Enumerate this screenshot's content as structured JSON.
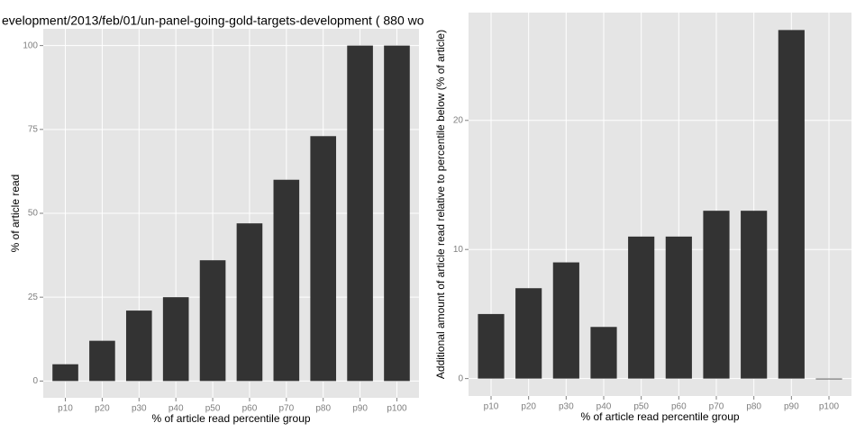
{
  "chart_data": [
    {
      "type": "bar",
      "title": "evelopment/2013/feb/01/un-panel-going-gold-targets-development ( 880 wo",
      "x_label": "% of article read percentile group",
      "y_label": "% of article read",
      "categories": [
        "p10",
        "p20",
        "p30",
        "p40",
        "p50",
        "p60",
        "p70",
        "p80",
        "p90",
        "p100"
      ],
      "values": [
        5,
        12,
        21,
        25,
        36,
        47,
        60,
        73,
        100,
        100
      ],
      "color": "#333333",
      "ylim": [
        -5,
        105
      ],
      "yticks": [
        0,
        25,
        50,
        75,
        100
      ],
      "grid": true
    },
    {
      "type": "bar",
      "x_label": "% of article read percentile group",
      "y_label": "Additional amount of article read relative to percentile below (% of article)",
      "categories": [
        "p10",
        "p20",
        "p30",
        "p40",
        "p50",
        "p60",
        "p70",
        "p80",
        "p90",
        "p100"
      ],
      "values": [
        5,
        7,
        9,
        4,
        11,
        11,
        13,
        13,
        27,
        0
      ],
      "color": "#333333",
      "ylim": [
        -1.35,
        28.35
      ],
      "yticks": [
        0,
        10,
        20
      ],
      "grid": true
    }
  ]
}
